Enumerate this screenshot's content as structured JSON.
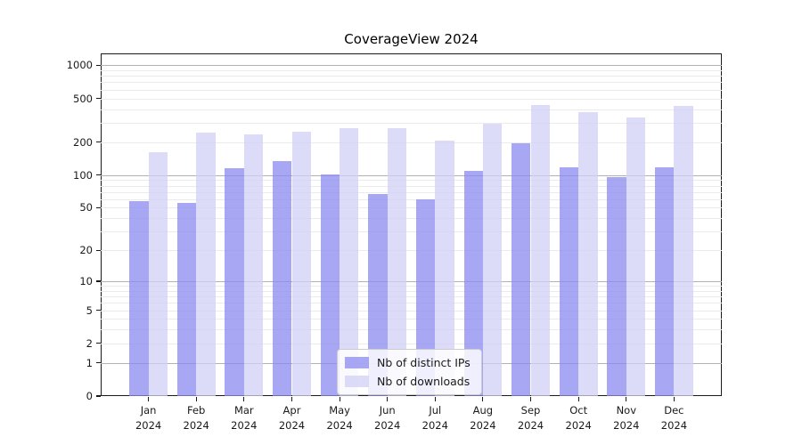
{
  "chart_data": {
    "type": "bar",
    "title": "CoverageView 2024",
    "categories": [
      "Jan 2024",
      "Feb 2024",
      "Mar 2024",
      "Apr 2024",
      "May 2024",
      "Jun 2024",
      "Jul 2024",
      "Aug 2024",
      "Sep 2024",
      "Oct 2024",
      "Nov 2024",
      "Dec 2024"
    ],
    "series": [
      {
        "name": "Nb of distinct IPs",
        "color": "#8a8af0",
        "opacity": 0.75,
        "values": [
          58,
          56,
          115,
          135,
          101,
          67,
          60,
          110,
          195,
          117,
          96,
          117
        ]
      },
      {
        "name": "Nb of downloads",
        "color": "#d0d0f6",
        "opacity": 0.75,
        "values": [
          162,
          245,
          236,
          249,
          270,
          270,
          207,
          294,
          433,
          375,
          335,
          427
        ]
      }
    ],
    "yscale": "symlog (y proportional to ln(1+v))",
    "ylim": [
      0,
      1280
    ],
    "yticks": [
      0,
      1,
      2,
      5,
      10,
      20,
      50,
      100,
      200,
      500,
      1000
    ],
    "grid": {
      "major_values": [
        1,
        10,
        100,
        1000
      ],
      "minor_steps": [
        2,
        3,
        4,
        5,
        6,
        7,
        8,
        9
      ],
      "minor_decades": [
        1,
        10,
        100
      ],
      "major_color": "#b2b2b2",
      "minor_color": "#ebebeb"
    },
    "legend_position": "lower center",
    "xlabel": "",
    "ylabel": ""
  }
}
